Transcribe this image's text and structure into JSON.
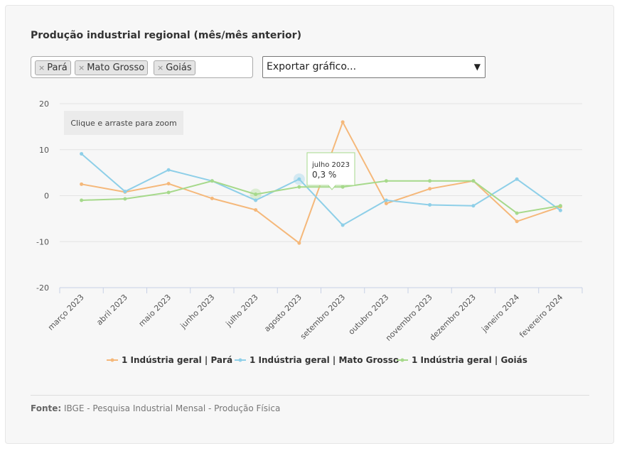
{
  "title": "Produção industrial regional (mês/mês anterior)",
  "filter": {
    "remove_symbol": "×",
    "tags": [
      "Pará",
      "Mato Grosso",
      "Goiás"
    ]
  },
  "export_select": {
    "selected": "Exportar gráfico...",
    "icon": "chevron-down-icon"
  },
  "zoom_hint": "Clique e arraste para zoom",
  "tooltip": {
    "month": "julho 2023",
    "value": "0,3 %"
  },
  "source": {
    "label": "Fonte:",
    "text": "IBGE - Pesquisa Industrial Mensal - Produção Física"
  },
  "chart_data": {
    "type": "line",
    "categories": [
      "março 2023",
      "abril 2023",
      "maio 2023",
      "junho 2023",
      "julho 2023",
      "agosto 2023",
      "setembro 2023",
      "outubro 2023",
      "novembro 2023",
      "dezembro 2023",
      "janeiro 2024",
      "fevereiro 2024"
    ],
    "ylim": [
      -20,
      20
    ],
    "yticks": [
      20,
      10,
      0,
      -10,
      -20
    ],
    "grid": true,
    "legend_position": "bottom",
    "series": [
      {
        "name": "1 Indústria geral | Pará",
        "color": "#f5b87a",
        "values": [
          2.5,
          0.8,
          2.6,
          -0.6,
          -3.1,
          -10.3,
          16.0,
          -1.7,
          1.5,
          3.2,
          -5.6,
          -2.4
        ]
      },
      {
        "name": "1 Indústria geral | Mato Grosso",
        "color": "#8ecfe8",
        "values": [
          9.1,
          0.9,
          5.6,
          3.2,
          -1.0,
          3.6,
          -6.4,
          -1.0,
          -2.0,
          -2.2,
          3.6,
          -3.2
        ]
      },
      {
        "name": "1 Indústria geral | Goiás",
        "color": "#a6d98b",
        "values": [
          -1.0,
          -0.7,
          0.7,
          3.2,
          0.3,
          1.9,
          1.9,
          3.2,
          3.2,
          3.2,
          -3.8,
          -2.2
        ]
      }
    ]
  }
}
